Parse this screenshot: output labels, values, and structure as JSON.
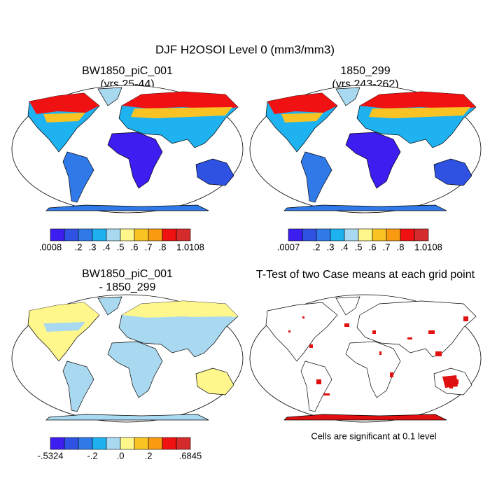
{
  "title": "DJF H2OSOI Level 0 (mm3/mm3)",
  "panels": [
    {
      "title": [
        "BW1850_piC_001",
        "(yrs 25-44)"
      ],
      "colorbar": {
        "colors": [
          "#3c1ef0",
          "#2f52e2",
          "#2f7ae8",
          "#1eb2f0",
          "#a9d9f0",
          "#fff68c",
          "#f9c423",
          "#f99a10",
          "#f01212",
          "#d42c2c"
        ],
        "labels": [
          ".0008",
          ".2",
          ".3",
          ".4",
          ".5",
          ".6",
          ".7",
          ".8",
          "1.0108"
        ]
      }
    },
    {
      "title": [
        "1850_299",
        "(yrs 243-262)"
      ],
      "colorbar": {
        "colors": [
          "#3c1ef0",
          "#2f52e2",
          "#2f7ae8",
          "#1eb2f0",
          "#a9d9f0",
          "#fff68c",
          "#f9c423",
          "#f99a10",
          "#f01212",
          "#d42c2c"
        ],
        "labels": [
          ".0007",
          ".2",
          ".3",
          ".4",
          ".5",
          ".6",
          ".7",
          ".8",
          "1.0108"
        ]
      }
    },
    {
      "title": [
        "BW1850_piC_001",
        "- 1850_299"
      ],
      "colorbar": {
        "colors": [
          "#3c1ef0",
          "#2f52e2",
          "#2f7ae8",
          "#1eb2f0",
          "#a9d9f0",
          "#fff68c",
          "#f9c423",
          "#f99a10",
          "#f01212",
          "#d42c2c"
        ],
        "labels": [
          "-.5324",
          "-.2",
          ".0",
          ".2",
          ".6845"
        ]
      }
    },
    {
      "title": [
        "T-Test of two Case means at each grid point"
      ],
      "note": "Cells are significant at 0.1 level"
    }
  ]
}
